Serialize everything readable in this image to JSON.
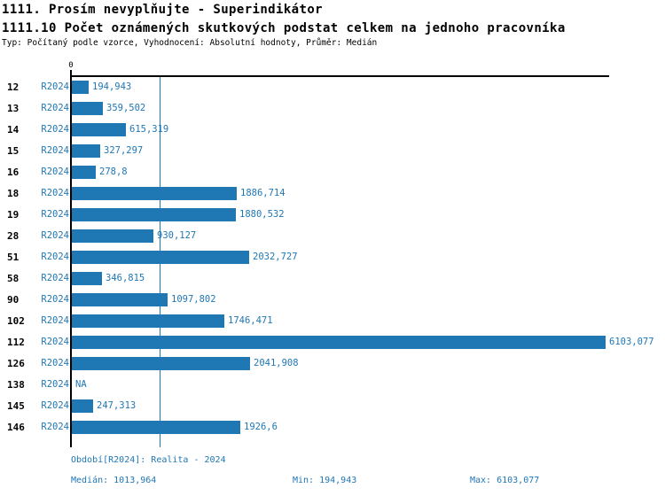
{
  "header": {
    "title_line1": "1111. Prosím nevyplňujte - Superindikátor",
    "title_line2": "1111.10 Počet oznámených skutkových podstat celkem na jednoho pracovníka",
    "subtitle": "Typ: Počítaný podle vzorce, Vyhodnocení: Absolutní hodnoty, Průměr: Medián"
  },
  "chart_data": {
    "type": "bar",
    "orientation": "horizontal",
    "title": "1111.10 Počet oznámených skutkových podstat celkem na jednoho pracovníka",
    "series_name": "R2024",
    "zero_tick_label": "0",
    "axis_min": 0,
    "axis_max": 6155,
    "median_value": 1013.964,
    "legend_position": "none",
    "grid": "median-line-only",
    "categories": [
      "12",
      "13",
      "14",
      "15",
      "16",
      "18",
      "19",
      "28",
      "51",
      "58",
      "90",
      "102",
      "112",
      "126",
      "138",
      "145",
      "146"
    ],
    "rows": [
      {
        "category": "12",
        "period": "R2024",
        "value": 194.943,
        "label": "194,943"
      },
      {
        "category": "13",
        "period": "R2024",
        "value": 359.502,
        "label": "359,502"
      },
      {
        "category": "14",
        "period": "R2024",
        "value": 615.319,
        "label": "615,319"
      },
      {
        "category": "15",
        "period": "R2024",
        "value": 327.297,
        "label": "327,297"
      },
      {
        "category": "16",
        "period": "R2024",
        "value": 278.8,
        "label": "278,8"
      },
      {
        "category": "18",
        "period": "R2024",
        "value": 1886.714,
        "label": "1886,714"
      },
      {
        "category": "19",
        "period": "R2024",
        "value": 1880.532,
        "label": "1880,532"
      },
      {
        "category": "28",
        "period": "R2024",
        "value": 930.127,
        "label": "930,127"
      },
      {
        "category": "51",
        "period": "R2024",
        "value": 2032.727,
        "label": "2032,727"
      },
      {
        "category": "58",
        "period": "R2024",
        "value": 346.815,
        "label": "346,815"
      },
      {
        "category": "90",
        "period": "R2024",
        "value": 1097.802,
        "label": "1097,802"
      },
      {
        "category": "102",
        "period": "R2024",
        "value": 1746.471,
        "label": "1746,471"
      },
      {
        "category": "112",
        "period": "R2024",
        "value": 6103.077,
        "label": "6103,077"
      },
      {
        "category": "126",
        "period": "R2024",
        "value": 2041.908,
        "label": "2041,908"
      },
      {
        "category": "138",
        "period": "R2024",
        "value": null,
        "label": "NA"
      },
      {
        "category": "145",
        "period": "R2024",
        "value": 247.313,
        "label": "247,313"
      },
      {
        "category": "146",
        "period": "R2024",
        "value": 1926.6,
        "label": "1926,6"
      }
    ],
    "colors": {
      "bar": "#1F77B4",
      "median_line": "#1F77B4",
      "blue_text": "#1F77B4",
      "axis": "#000000"
    }
  },
  "footer": {
    "period_line": "Období[R2024]: Realita - 2024",
    "median_label": "Medián: 1013,964",
    "min_label": "Min: 194,943",
    "max_label": "Max: 6103,077"
  }
}
